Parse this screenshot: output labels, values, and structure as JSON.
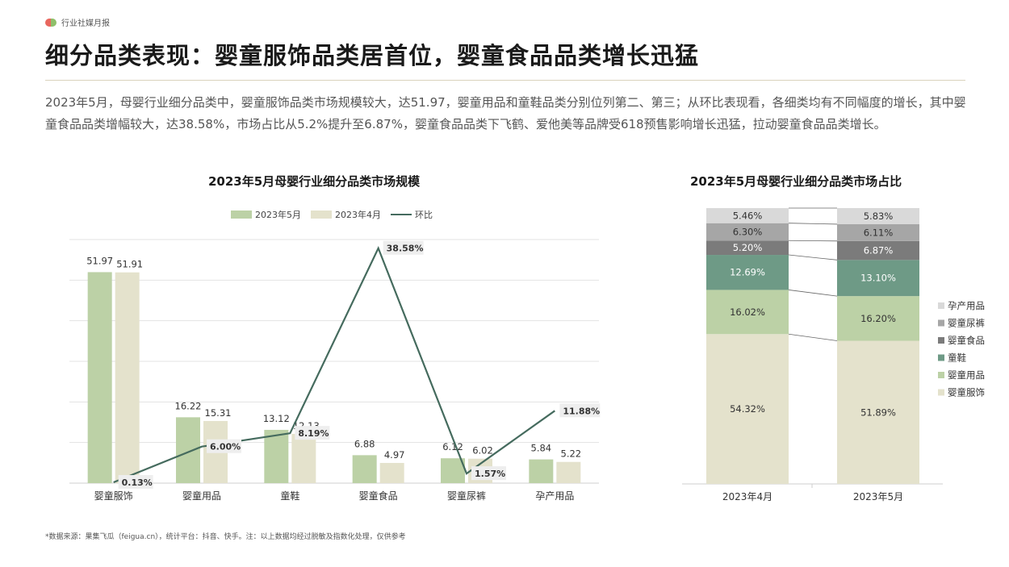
{
  "header": {
    "tag": "行业社媒月报"
  },
  "page_title": "细分品类表现：婴童服饰品类居首位，婴童食品品类增长迅猛",
  "summary": "2023年5月，母婴行业细分品类中，婴童服饰品类市场规模较大，达51.97，婴童用品和童鞋品类分别位列第二、第三；从环比表现看，各细类均有不同幅度的增长，其中婴童食品品类增幅较大，达38.58%，市场占比从5.2%提升至6.87%，婴童食品品类下飞鹤、爱他美等品牌受618预售影响增长迅猛，拉动婴童食品品类增长。",
  "footnote": "*数据来源：果集飞瓜（feigua.cn），统计平台：抖音、快手。注：以上数据均经过脱敏及指数化处理，仅供参考",
  "colors": {
    "may": "#bcd1a6",
    "april": "#e4e2cc",
    "line": "#456b5e",
    "grid": "#e3e3e3"
  },
  "chart_data": [
    {
      "type": "bar",
      "title": "2023年5月母婴行业细分品类市场规模",
      "categories": [
        "婴童服饰",
        "婴童用品",
        "童鞋",
        "婴童食品",
        "婴童尿裤",
        "孕产用品"
      ],
      "series": [
        {
          "name": "2023年5月",
          "values": [
            51.97,
            16.22,
            13.12,
            6.88,
            6.12,
            5.84
          ],
          "labels": [
            "51.97",
            "16.22",
            "13.12",
            "6.88",
            "6.12",
            "5.84"
          ]
        },
        {
          "name": "2023年4月",
          "values": [
            51.91,
            15.31,
            12.13,
            4.97,
            6.02,
            5.22
          ],
          "labels": [
            "51.91",
            "15.31",
            "12.13",
            "4.97",
            "6.02",
            "5.22"
          ]
        },
        {
          "name": "环比",
          "type": "line",
          "values": [
            0.13,
            6.0,
            8.19,
            38.58,
            1.57,
            11.88
          ],
          "labels": [
            "0.13%",
            "6.00%",
            "8.19%",
            "38.58%",
            "1.57%",
            "11.88%"
          ]
        }
      ],
      "ylim": [
        0,
        60
      ],
      "y2lim": [
        0,
        40
      ],
      "grid": true,
      "legend": "top-center"
    },
    {
      "type": "bar",
      "stacked": true,
      "title": "2023年5月母婴行业细分品类市场占比",
      "categories": [
        "2023年4月",
        "2023年5月"
      ],
      "series": [
        {
          "name": "婴童服饰",
          "color": "#e4e2cc",
          "values": [
            54.32,
            51.89
          ],
          "labels": [
            "54.32%",
            "51.89%"
          ]
        },
        {
          "name": "婴童用品",
          "color": "#bcd1a6",
          "values": [
            16.02,
            16.2
          ],
          "labels": [
            "16.02%",
            "16.20%"
          ]
        },
        {
          "name": "童鞋",
          "color": "#6e9a86",
          "values": [
            12.69,
            13.1
          ],
          "labels": [
            "12.69%",
            "13.10%"
          ]
        },
        {
          "name": "婴童食品",
          "color": "#7b7b7b",
          "values": [
            5.2,
            6.87
          ],
          "labels": [
            "5.20%",
            "6.87%"
          ]
        },
        {
          "name": "婴童尿裤",
          "color": "#a6a6a6",
          "values": [
            6.3,
            6.11
          ],
          "labels": [
            "6.30%",
            "6.11%"
          ]
        },
        {
          "name": "孕产用品",
          "color": "#d9d9d9",
          "values": [
            5.46,
            5.83
          ],
          "labels": [
            "5.46%",
            "5.83%"
          ]
        }
      ],
      "ylim": [
        0,
        100
      ],
      "legend": "right"
    }
  ]
}
